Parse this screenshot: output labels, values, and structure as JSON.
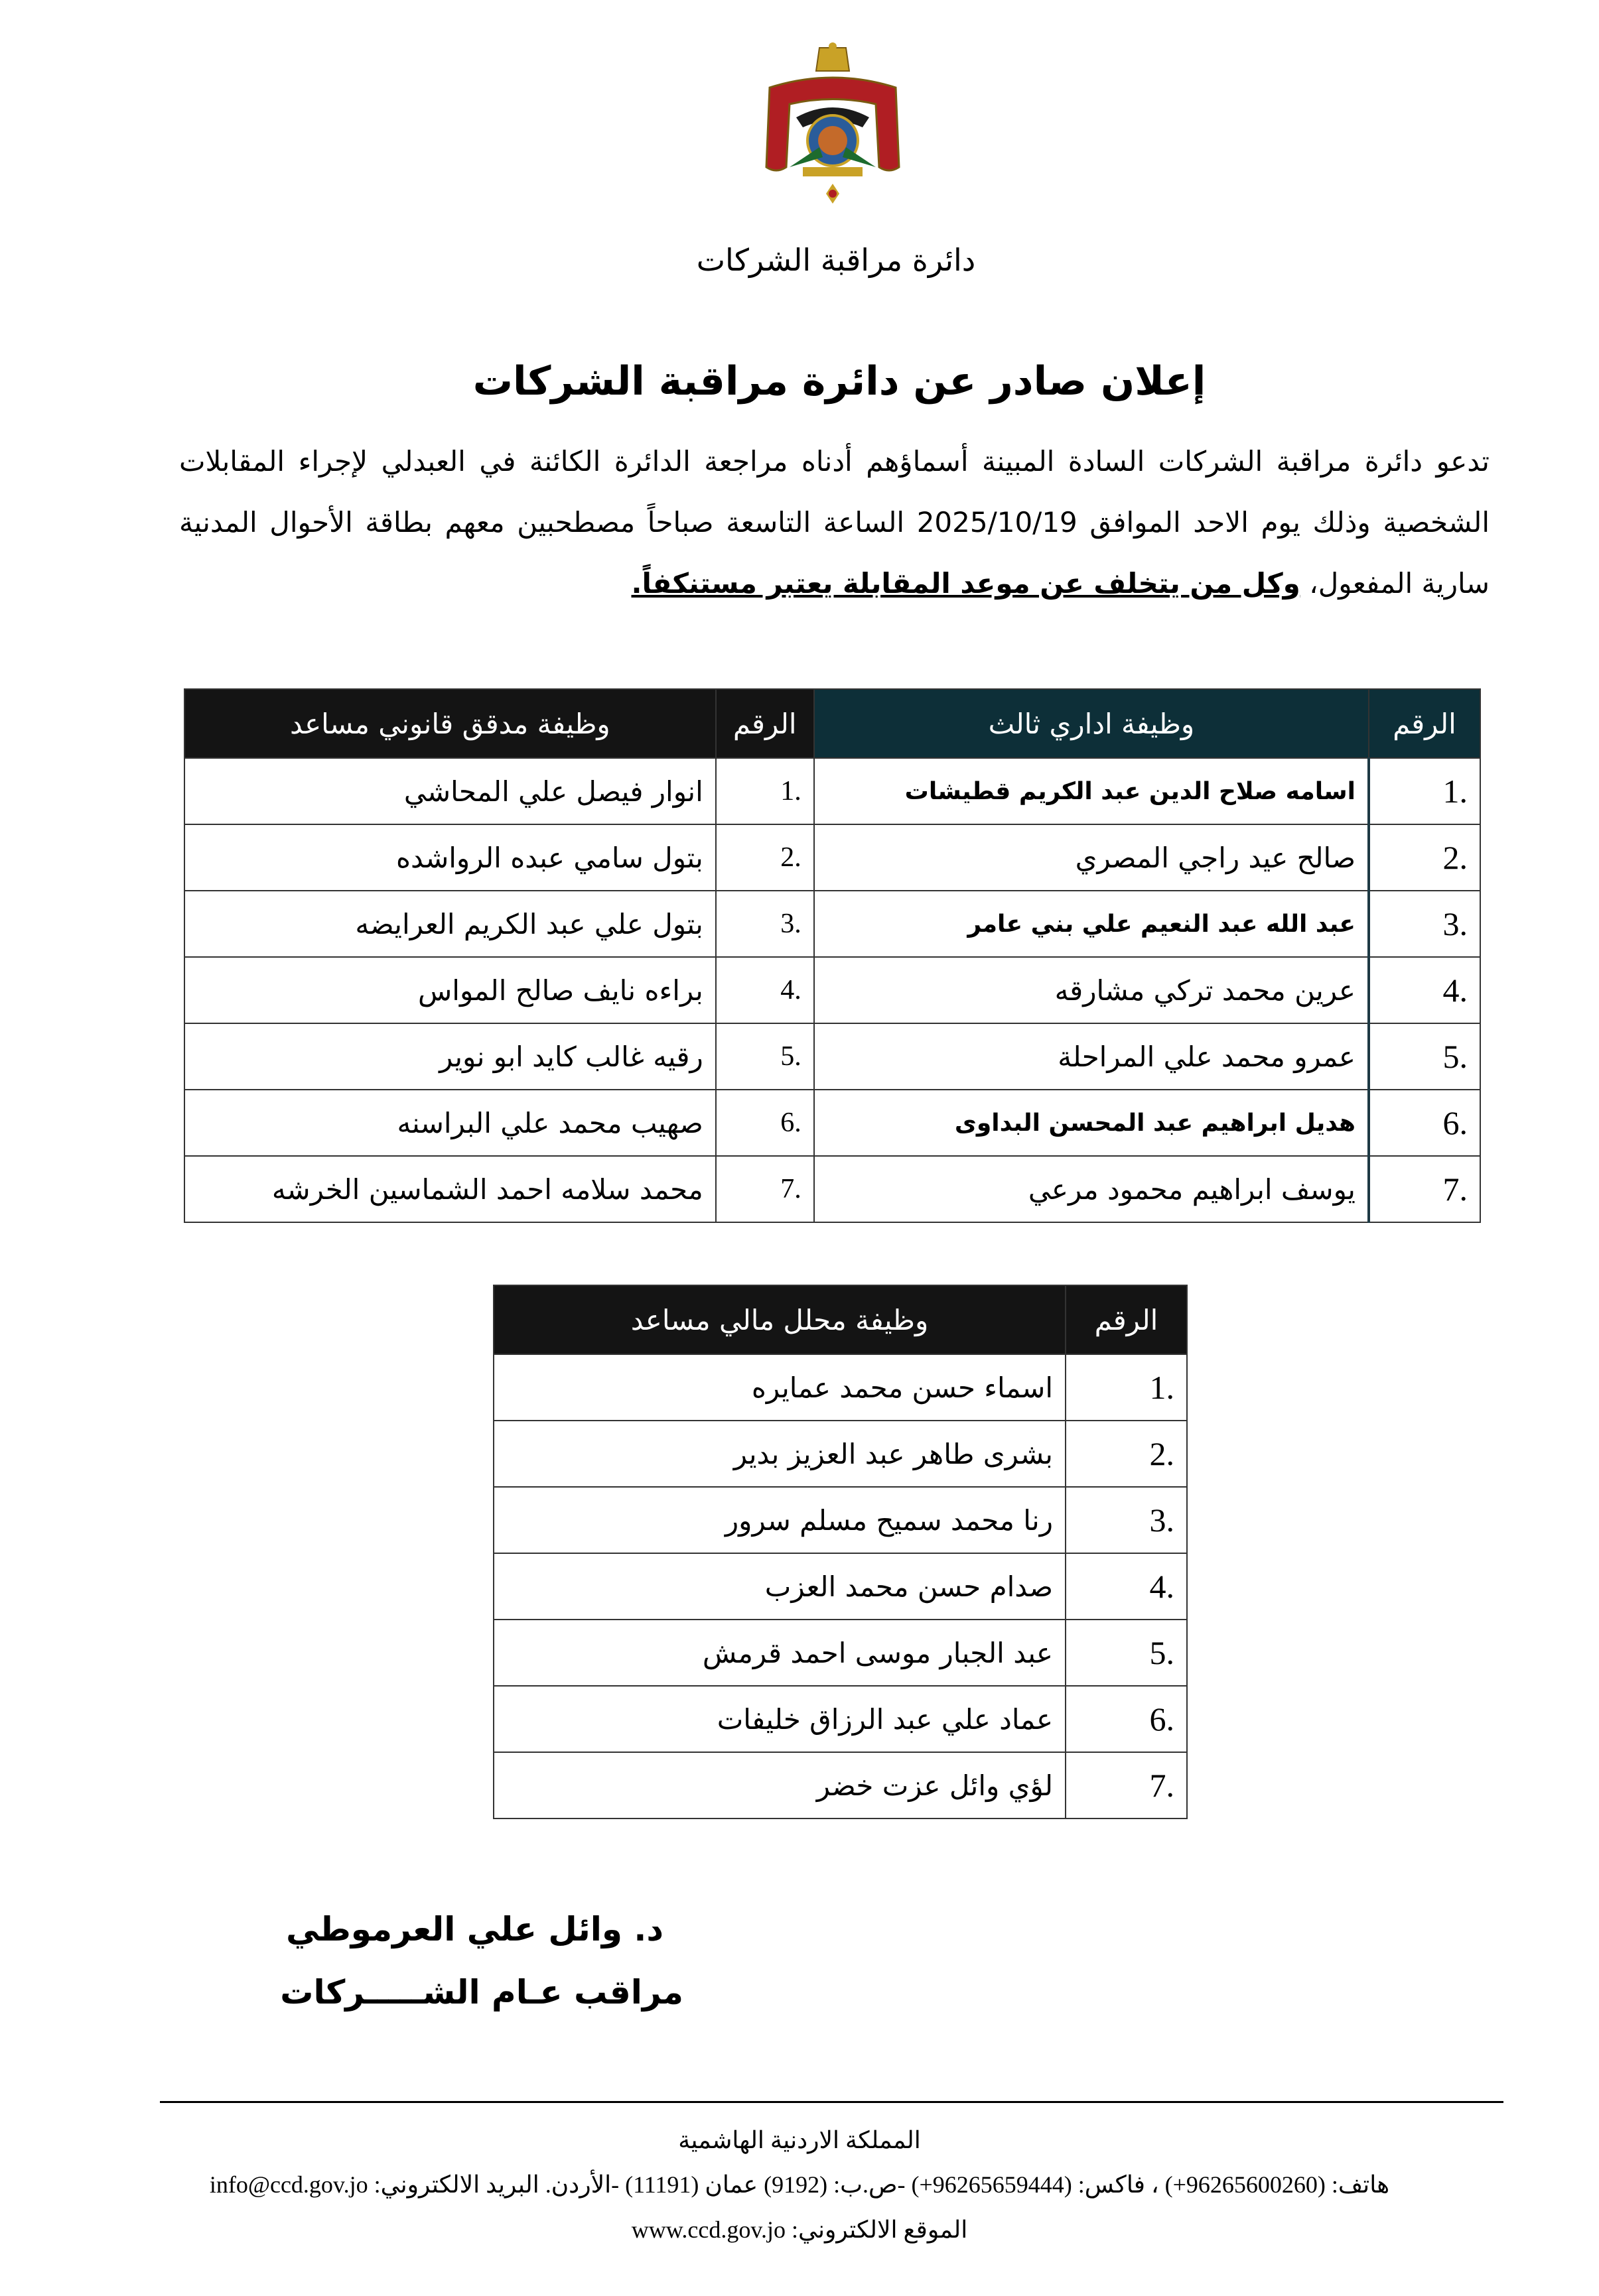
{
  "header": {
    "emblem": "jordan-coat-of-arms",
    "department": "دائرة مراقبة الشركات"
  },
  "title": "إعلان صادر عن دائرة مراقبة الشركات",
  "intro": {
    "text": "تدعو دائرة مراقبة الشركات السادة المبينة أسماؤهم أدناه مراجعة الدائرة الكائنة في العبدلي لإجراء المقابلات الشخصية وذلك يوم الاحد الموافق 2025/10/19 الساعة التاسعة صباحاً مصطحبين معهم بطاقة الأحوال المدنية سارية المفعول، ",
    "emphasis": "وكل من يتخلف عن موعد المقابلة يعتبر مستنكفاً."
  },
  "table1": {
    "col_num": "الرقم",
    "col_admin": "وظيفة اداري ثالث",
    "col_legal": "وظيفة مدقق قانوني مساعد",
    "rows": [
      {
        "n": ".1",
        "admin": "اسامه صلاح الدين عبد الكريم قطيشات",
        "n2": ".1",
        "legal": "انوار فيصل علي المحاشي"
      },
      {
        "n": ".2",
        "admin": "صالح عيد راجي المصري",
        "n2": ".2",
        "legal": "بتول سامي عبده الرواشده"
      },
      {
        "n": ".3",
        "admin": "عبد الله عبد النعيم علي بني عامر",
        "n2": ".3",
        "legal": "بتول علي عبد الكريم العرايضه"
      },
      {
        "n": ".4",
        "admin": "عرين محمد تركي مشارقه",
        "n2": ".4",
        "legal": "براءه نايف صالح المواس"
      },
      {
        "n": ".5",
        "admin": "عمرو محمد علي المراحلة",
        "n2": ".5",
        "legal": "رقيه غالب كايد ابو نوير"
      },
      {
        "n": ".6",
        "admin": "هديل ابراهيم عبد المحسن البداوى",
        "n2": ".6",
        "legal": "صهيب محمد علي البراسنه"
      },
      {
        "n": ".7",
        "admin": "يوسف ابراهيم محمود مرعي",
        "n2": ".7",
        "legal": "محمد سلامه احمد الشماسين الخرشه"
      }
    ]
  },
  "table2": {
    "col_num": "الرقم",
    "col_fin": "وظيفة محلل مالي مساعد",
    "rows": [
      {
        "n": ".1",
        "name": "اسماء حسن محمد عمايره"
      },
      {
        "n": ".2",
        "name": "بشرى طاهر عبد العزيز بدير"
      },
      {
        "n": ".3",
        "name": "رنا محمد سميح مسلم سرور"
      },
      {
        "n": ".4",
        "name": "صدام حسن محمد العزب"
      },
      {
        "n": ".5",
        "name": "عبد الجبار موسى احمد قرمش"
      },
      {
        "n": ".6",
        "name": "عماد علي عبد الرزاق خليفات"
      },
      {
        "n": ".7",
        "name": "لؤي وائل عزت خضر"
      }
    ]
  },
  "signature": {
    "name": "د. وائل علي العرموطي",
    "position": "مراقب عـام الشـــــركات"
  },
  "footer": {
    "country": "المملكة الاردنية الهاشمية",
    "contact": "هاتف: (96265600260+) ، فاكس: (96265659444+) -ص.ب: (9192) عمان (11191) -الأردن. البريد الالكتروني: info@ccd.gov.jo",
    "website": "الموقع الالكتروني: www.ccd.gov.jo"
  }
}
